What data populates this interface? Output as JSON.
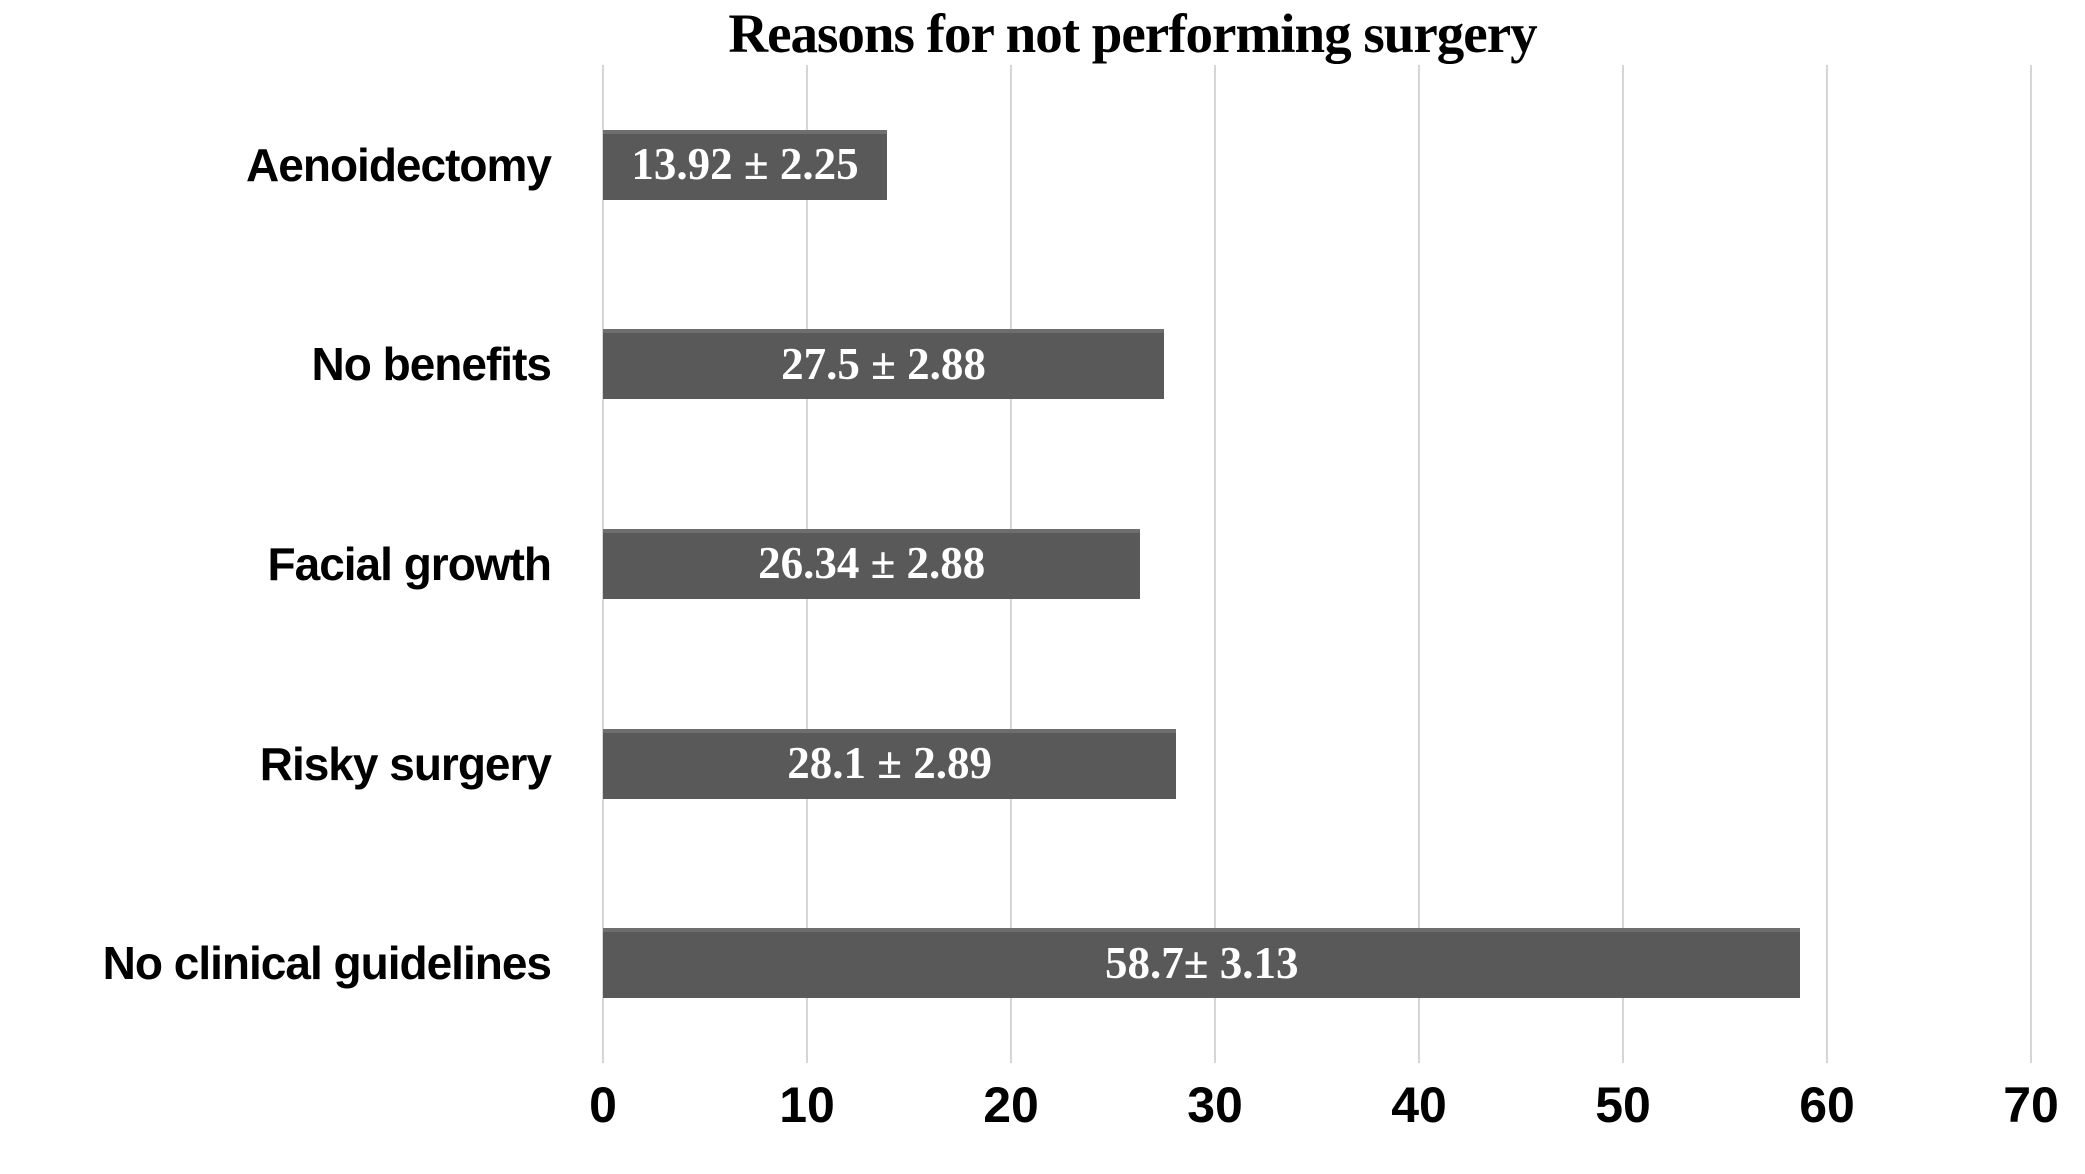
{
  "chart_data": {
    "type": "bar",
    "orientation": "horizontal",
    "title": "Reasons for not performing surgery",
    "categories": [
      "Aenoidectomy",
      "No benefits",
      "Facial growth",
      "Risky surgery",
      "No clinical guidelines"
    ],
    "values": [
      13.92,
      27.5,
      26.34,
      28.1,
      58.7
    ],
    "errors": [
      2.25,
      2.88,
      2.88,
      2.89,
      3.13
    ],
    "bar_labels": [
      "13.92 ± 2.25",
      "27.5 ± 2.88",
      "26.34 ± 2.88",
      "28.1 ± 2.89",
      "58.7± 3.13"
    ],
    "xlabel": "",
    "ylabel": "",
    "xlim": [
      0,
      70
    ],
    "x_ticks": [
      0,
      10,
      20,
      30,
      40,
      50,
      60,
      70
    ],
    "grid": "vertical-only",
    "legend": "none",
    "colors": {
      "bar_fill": "#595959",
      "bar_top_highlight": "#6e6e6e",
      "bar_label_text": "#ffffff",
      "gridline": "#d6d6d6",
      "text": "#000000",
      "background": "#ffffff"
    }
  }
}
